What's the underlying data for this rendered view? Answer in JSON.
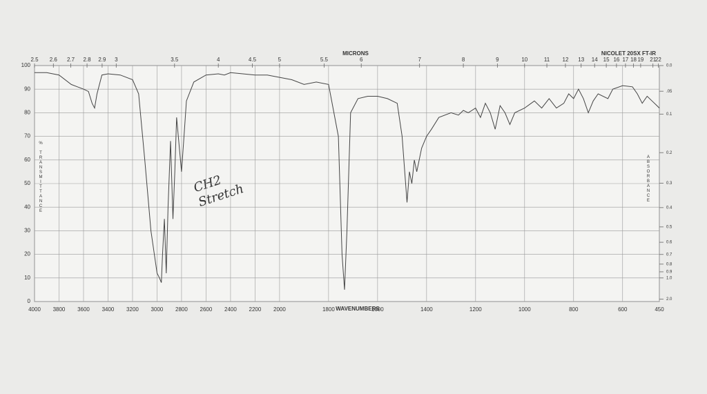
{
  "chart_data": {
    "type": "line",
    "title": "NICOLET 20SX FT-IR",
    "xlabel": "WAVENUMBERS",
    "x2label": "MICRONS",
    "ylabel": "% TRANSMITTANCE",
    "y2label": "ABSORBANCE",
    "annotations": [
      "CH2",
      "Stretch"
    ],
    "color": "#444444",
    "grid": true,
    "xlim": [
      4000,
      450
    ],
    "x_scale_break": 2000,
    "x_scale_factor": 2,
    "xticks": [
      4000,
      3800,
      3600,
      3400,
      3200,
      3000,
      2800,
      2600,
      2400,
      2200,
      2000,
      1800,
      1600,
      1400,
      1200,
      1000,
      800,
      600,
      450
    ],
    "x2ticks": [
      2.5,
      2.6,
      2.7,
      2.8,
      2.9,
      3,
      3.5,
      4,
      4.5,
      5,
      5.5,
      6,
      7,
      8,
      9,
      10,
      11,
      12,
      13,
      14,
      15,
      16,
      17,
      18,
      19,
      21,
      22
    ],
    "ylim": [
      0,
      100
    ],
    "yticks": [
      0,
      10,
      20,
      30,
      40,
      50,
      60,
      70,
      80,
      90,
      100
    ],
    "y2ticks": [
      {
        "value": 0,
        "label": "0.0"
      },
      {
        "value": 0.05,
        "label": ".05"
      },
      {
        "value": 0.1,
        "label": "0.1"
      },
      {
        "value": 0.2,
        "label": "0.2"
      },
      {
        "value": 0.3,
        "label": "0.3"
      },
      {
        "value": 0.4,
        "label": "0.4"
      },
      {
        "value": 0.5,
        "label": "0.5"
      },
      {
        "value": 0.6,
        "label": "0.6"
      },
      {
        "value": 0.7,
        "label": "0.7"
      },
      {
        "value": 0.8,
        "label": "0.8"
      },
      {
        "value": 0.9,
        "label": "0.9"
      },
      {
        "value": 1,
        "label": "1.0"
      },
      {
        "value": 2,
        "label": "2.0"
      }
    ],
    "x": [
      4000,
      3900,
      3800,
      3700,
      3650,
      3600,
      3560,
      3530,
      3510,
      3490,
      3450,
      3400,
      3300,
      3200,
      3150,
      3100,
      3050,
      3000,
      2980,
      2965,
      2955,
      2940,
      2925,
      2910,
      2890,
      2870,
      2855,
      2840,
      2800,
      2780,
      2760,
      2700,
      2600,
      2500,
      2450,
      2400,
      2300,
      2200,
      2100,
      2000,
      1950,
      1900,
      1850,
      1800,
      1760,
      1745,
      1735,
      1725,
      1710,
      1680,
      1640,
      1600,
      1560,
      1520,
      1500,
      1480,
      1470,
      1460,
      1450,
      1440,
      1420,
      1400,
      1380,
      1350,
      1300,
      1270,
      1250,
      1230,
      1200,
      1180,
      1160,
      1140,
      1120,
      1100,
      1080,
      1060,
      1040,
      1000,
      960,
      930,
      900,
      870,
      840,
      820,
      800,
      780,
      760,
      740,
      720,
      700,
      660,
      640,
      600,
      560,
      540,
      520,
      500,
      480,
      460,
      450
    ],
    "values": [
      97,
      97,
      96,
      92,
      91,
      90,
      89,
      84,
      82,
      88,
      96,
      96.5,
      96,
      94,
      88,
      60,
      30,
      12,
      10,
      8,
      20,
      35,
      12,
      40,
      68,
      35,
      55,
      78,
      55,
      70,
      85,
      93,
      96,
      96.5,
      96,
      97,
      96.5,
      96,
      96,
      95,
      94,
      92,
      93,
      92,
      70,
      20,
      5,
      30,
      80,
      86,
      87,
      87,
      86,
      84,
      70,
      42,
      55,
      50,
      60,
      55,
      65,
      70,
      73,
      78,
      80,
      79,
      81,
      80,
      82,
      78,
      84,
      80,
      73,
      83,
      80,
      75,
      80,
      82,
      85,
      82,
      86,
      82,
      84,
      88,
      86,
      90,
      86,
      80,
      85,
      88,
      86,
      90,
      91.5,
      91,
      88,
      84,
      87,
      85,
      83,
      82
    ]
  }
}
